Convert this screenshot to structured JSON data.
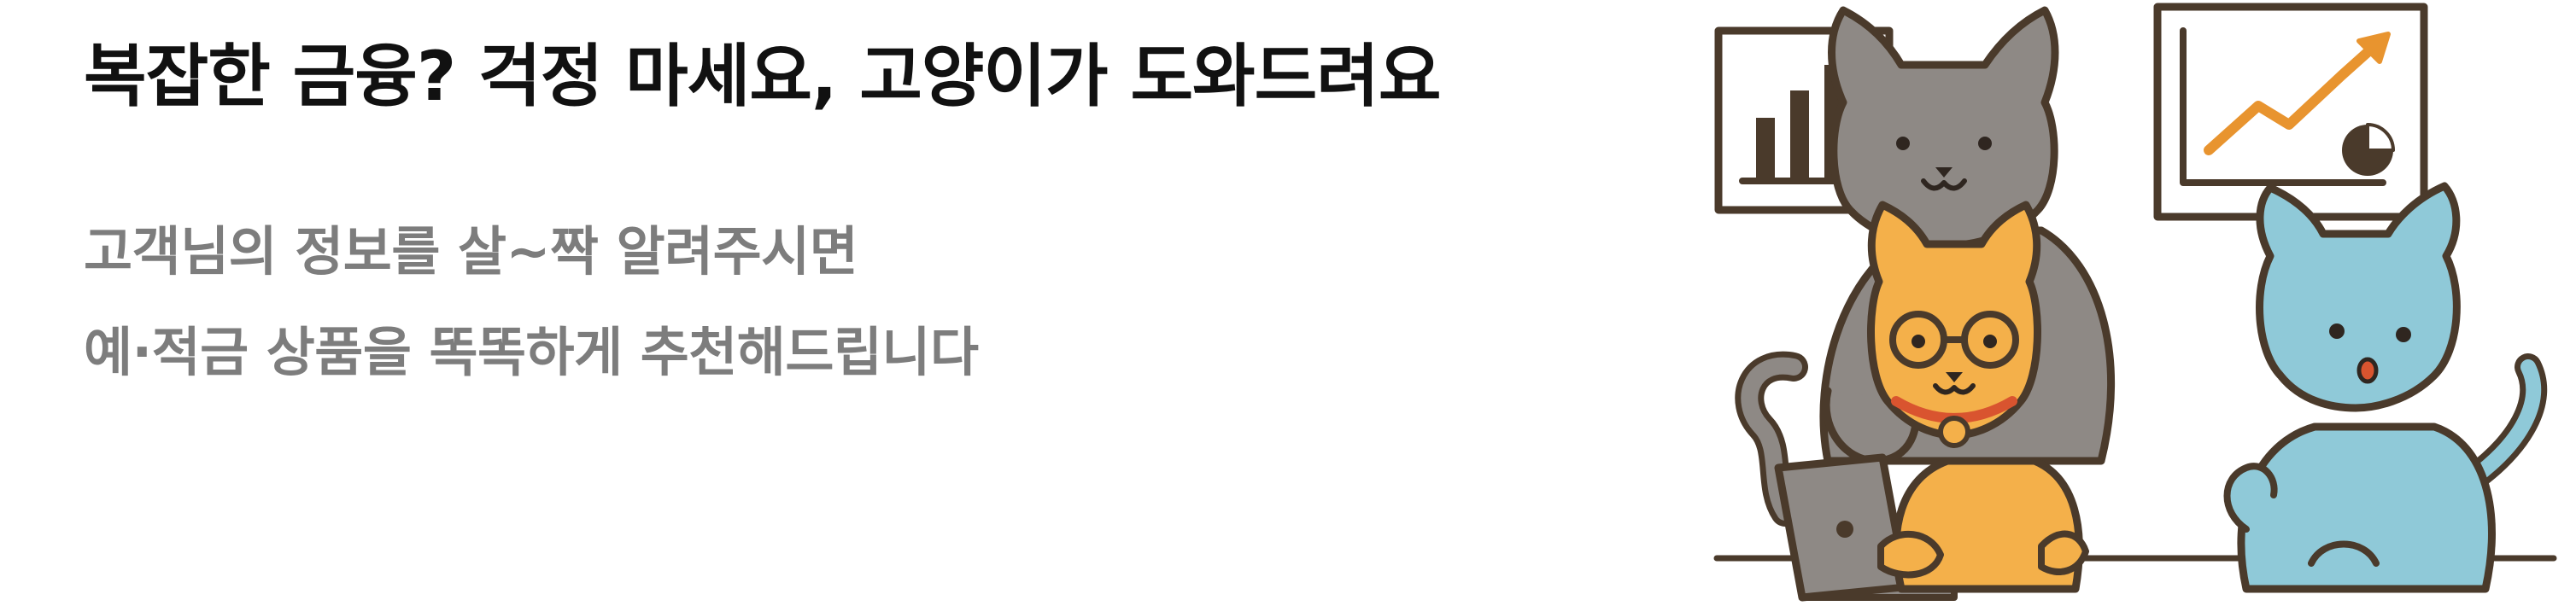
{
  "banner": {
    "headline": "복잡한 금융? 걱정 마세요, 고양이가 도와드려요",
    "subtitle_lines": [
      "고객님의 정보를 살~짝 알려주시면",
      "예·적금 상품을 똑똑하게 추천해드립니다"
    ]
  },
  "illustration": {
    "icons": [
      "bar-chart-icon",
      "trend-chart-icon",
      "pie-chart-icon",
      "laptop-icon",
      "gray-cat-icon",
      "orange-cat-icon",
      "blue-cat-icon"
    ],
    "colors": {
      "outline": "#4a3a2b",
      "gray_cat": "#8e8985",
      "orange_cat": "#f4b04a",
      "blue_cat": "#8fc9d8",
      "accent_orange": "#e8942f",
      "collar_red": "#d9542f",
      "board_bg": "#ffffff"
    }
  }
}
